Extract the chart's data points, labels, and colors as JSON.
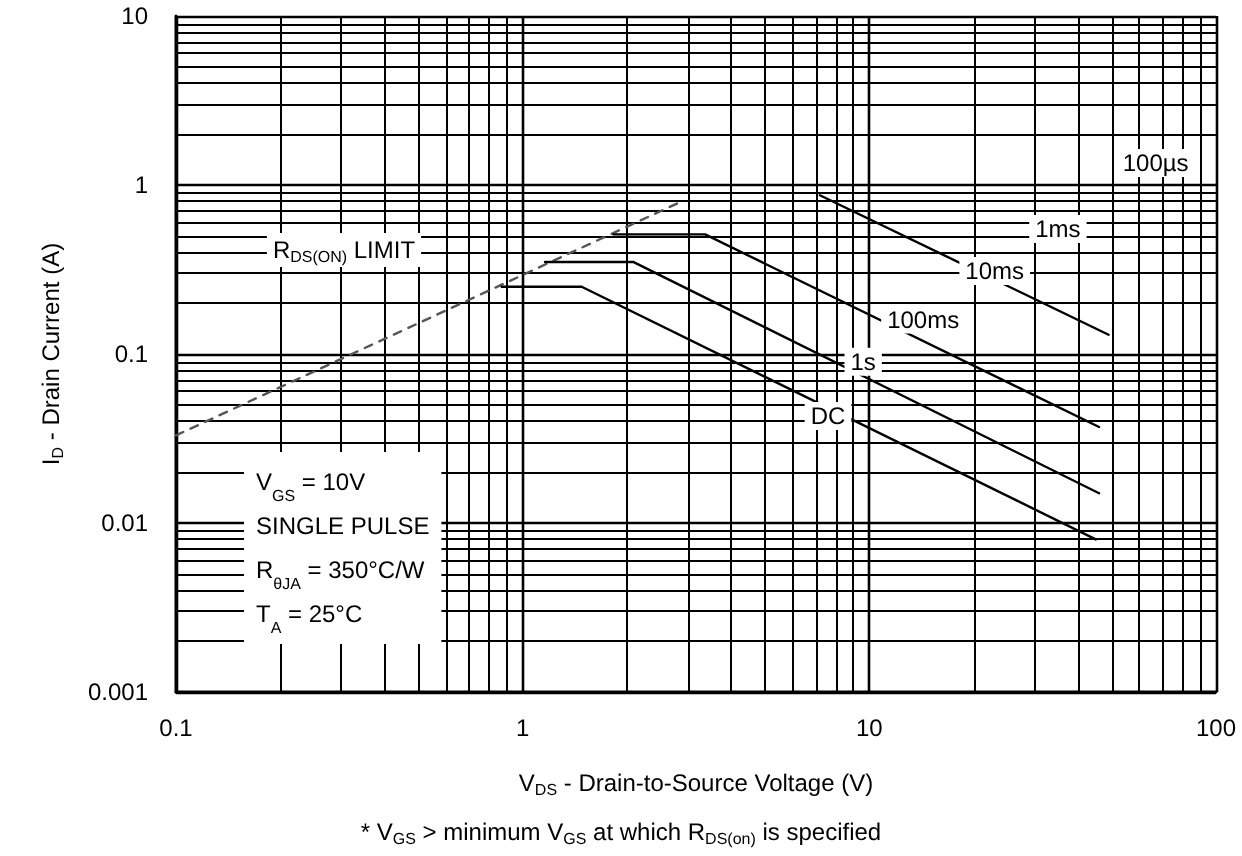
{
  "chart_data": {
    "type": "line",
    "xlabel": "V$_{DS}$ - Drain-to-Source Voltage (V)",
    "ylabel": "I$_{D}$ - Drain Current (A)",
    "log": "xy",
    "xlim": [
      0.1,
      100
    ],
    "ylim": [
      0.001,
      10
    ],
    "xticks": [
      0.1,
      1,
      10,
      100
    ],
    "yticks": [
      0.001,
      0.01,
      0.1,
      1,
      10
    ],
    "grid": true,
    "marker": "none",
    "series": [
      {
        "color": "#555555",
        "line_style": "dashed",
        "x": [
          0.1,
          2.8
        ],
        "values": [
          0.033,
          0.78
        ]
      },
      {
        "color": "#000000",
        "x": [
          7.2,
          49
        ],
        "values": [
          0.87,
          0.13
        ]
      },
      {
        "color": "#000000",
        "x": [
          1.83,
          3.36,
          46
        ],
        "values": [
          0.51,
          0.51,
          0.037
        ]
      },
      {
        "color": "#000000",
        "x": [
          1.16,
          2.09,
          46
        ],
        "values": [
          0.35,
          0.35,
          0.015
        ]
      },
      {
        "color": "#000000",
        "x": [
          0.87,
          1.48,
          45
        ],
        "values": [
          0.25,
          0.25,
          0.008
        ]
      }
    ],
    "annotations": [
      {
        "text": "100µs",
        "x": 67,
        "y": 1.35
      },
      {
        "text": "1ms",
        "x": 35,
        "y": 0.55
      },
      {
        "text": "10ms",
        "x": 23,
        "y": 0.31
      },
      {
        "text": "100ms",
        "x": 14.3,
        "y": 0.16
      },
      {
        "text": "1s",
        "x": 9.6,
        "y": 0.09
      },
      {
        "text": "DC",
        "x": 7.6,
        "y": 0.043
      },
      "R$_{DS(ON)}$ LIMIT",
      "V$_{GS}$ = 10V",
      "SINGLE PULSE",
      "R$_{θJA}$ = 350°C/W",
      "T$_{A}$ = 25°C",
      "* V$_{GS}$ > minimum V$_{GS}$ at which R$_{DS(on)}$ is specified"
    ]
  }
}
